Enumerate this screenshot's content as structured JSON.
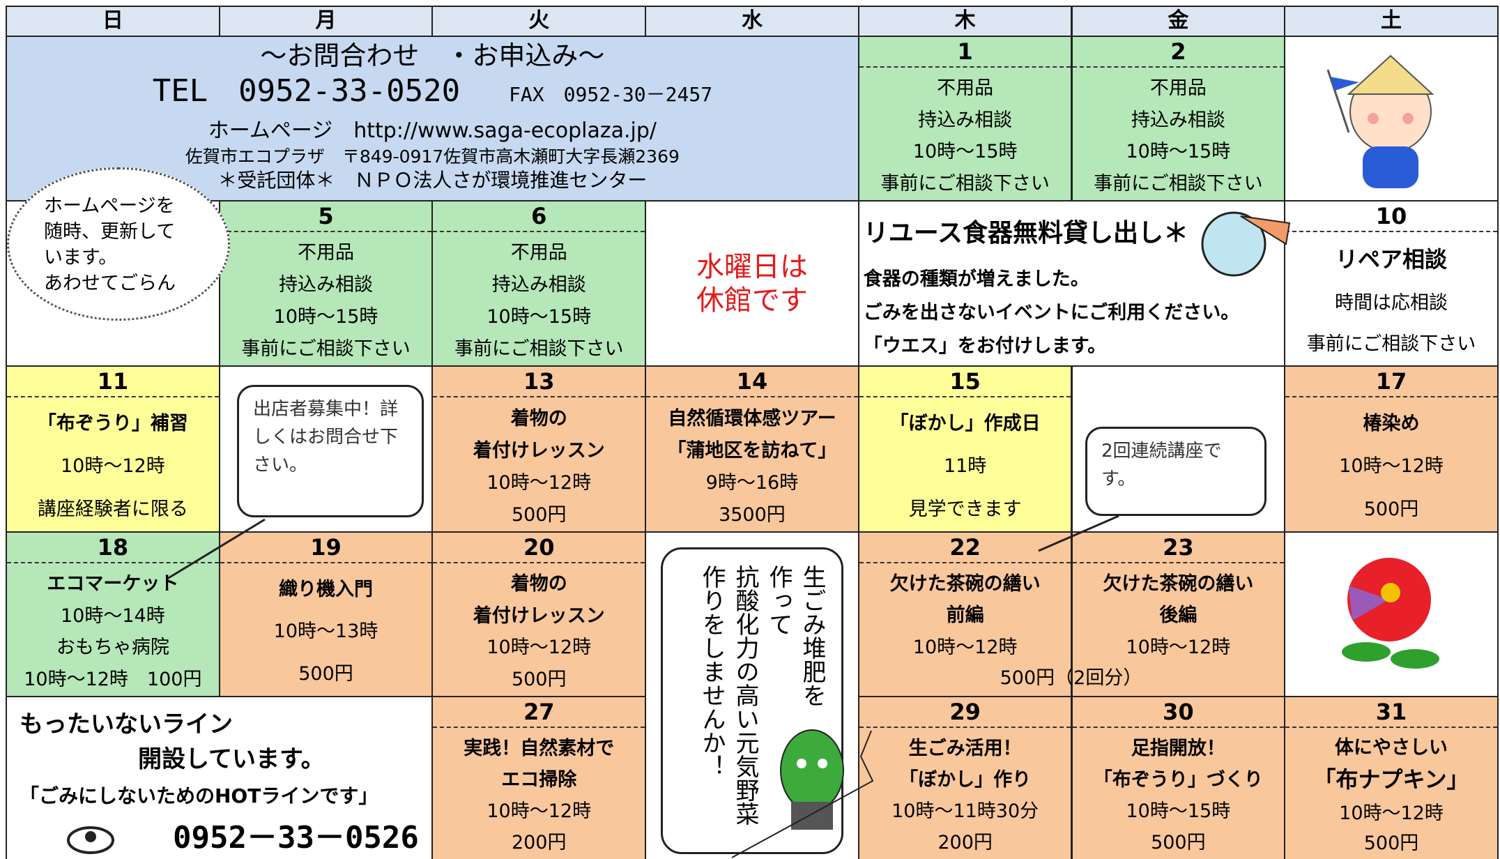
{
  "weekdays": [
    "日",
    "月",
    "火",
    "水",
    "木",
    "金",
    "土"
  ],
  "contact": {
    "heading": "～お問合わせ　・お申込み～",
    "tel": "TEL　0952-33-0520",
    "fax": "FAX　0952-30－2457",
    "homepage": "ホームページ　http://www.saga-ecoplaza.jp/",
    "address": "佐賀市エコプラザ　〒849-0917佐賀市高木瀬町大字長瀬2369",
    "operator": "＊受託団体＊　ＮＰＯ法人さが環境推進センター"
  },
  "cloud_note": [
    "ホームページを",
    "随時、更新して",
    "います。",
    "あわせてごらん"
  ],
  "closed": [
    "水曜日は",
    "休館です"
  ],
  "reuse": {
    "title": "リユース食器無料貸し出し＊",
    "lines": [
      "食器の種類が増えました。",
      "ごみを出さないイベントにご利用ください。",
      "「ウエス」をお付けします。"
    ]
  },
  "bubble_vendor": "出店者募集中！詳しくはお問合せ下さい。",
  "bubble_series": "2回連続講座です。",
  "vegetable_note": [
    "生ごみ堆肥を",
    "作って",
    "抗酸化力の高い元気野菜",
    "作りをしませんか！"
  ],
  "shared_fee": "500円（2回分）",
  "hotline": [
    "もったいないライン",
    "開設しています。",
    "「ごみにしないためのHOTラインです」",
    "0952－33－0526"
  ],
  "days": [
    {
      "date": "1",
      "lines": [
        "不用品",
        "持込み相談",
        "10時～15時",
        "事前にご相談下さい"
      ]
    },
    {
      "date": "2",
      "lines": [
        "不用品",
        "持込み相談",
        "10時～15時",
        "事前にご相談下さい"
      ]
    },
    {
      "date": "5",
      "lines": [
        "不用品",
        "持込み相談",
        "10時～15時",
        "事前にご相談下さい"
      ]
    },
    {
      "date": "6",
      "lines": [
        "不用品",
        "持込み相談",
        "10時～15時",
        "事前にご相談下さい"
      ]
    },
    {
      "date": "10",
      "lines": [
        "リペア相談",
        "時間は応相談",
        "事前にご相談下さい"
      ]
    },
    {
      "date": "11",
      "lines": [
        "「布ぞうり」補習",
        "10時～12時",
        "講座経験者に限る"
      ]
    },
    {
      "date": "13",
      "lines": [
        "着物の",
        "着付けレッスン",
        "10時～12時",
        "500円"
      ]
    },
    {
      "date": "14",
      "lines": [
        "自然循環体感ツアー",
        "「蒲地区を訪ねて」",
        "9時～16時",
        "3500円"
      ]
    },
    {
      "date": "15",
      "lines": [
        "「ぼかし」作成日",
        "11時",
        "見学できます"
      ]
    },
    {
      "date": "17",
      "lines": [
        "椿染め",
        "10時～12時",
        "500円"
      ]
    },
    {
      "date": "18",
      "lines": [
        "エコマーケット",
        "10時～14時",
        "おもちゃ病院",
        "10時～12時　100円"
      ]
    },
    {
      "date": "19",
      "lines": [
        "織り機入門",
        "10時～13時",
        "500円"
      ]
    },
    {
      "date": "20",
      "lines": [
        "着物の",
        "着付けレッスン",
        "10時～12時",
        "500円"
      ]
    },
    {
      "date": "22",
      "lines": [
        "欠けた茶碗の繕い",
        "前編",
        "10時～12時"
      ]
    },
    {
      "date": "23",
      "lines": [
        "欠けた茶碗の繕い",
        "後編",
        "10時～12時"
      ]
    },
    {
      "date": "27",
      "lines": [
        "実践！自然素材で",
        "エコ掃除",
        "10時～12時",
        "200円"
      ]
    },
    {
      "date": "29",
      "lines": [
        "生ごみ活用！",
        "「ぼかし」作り",
        "10時～11時30分",
        "200円"
      ]
    },
    {
      "date": "30",
      "lines": [
        "足指開放！",
        "「布ぞうり」づくり",
        "10時～15時",
        "500円"
      ]
    },
    {
      "date": "31",
      "lines": [
        "体にやさしい",
        "「布ナプキン」",
        "10時～12時",
        "500円"
      ]
    }
  ]
}
